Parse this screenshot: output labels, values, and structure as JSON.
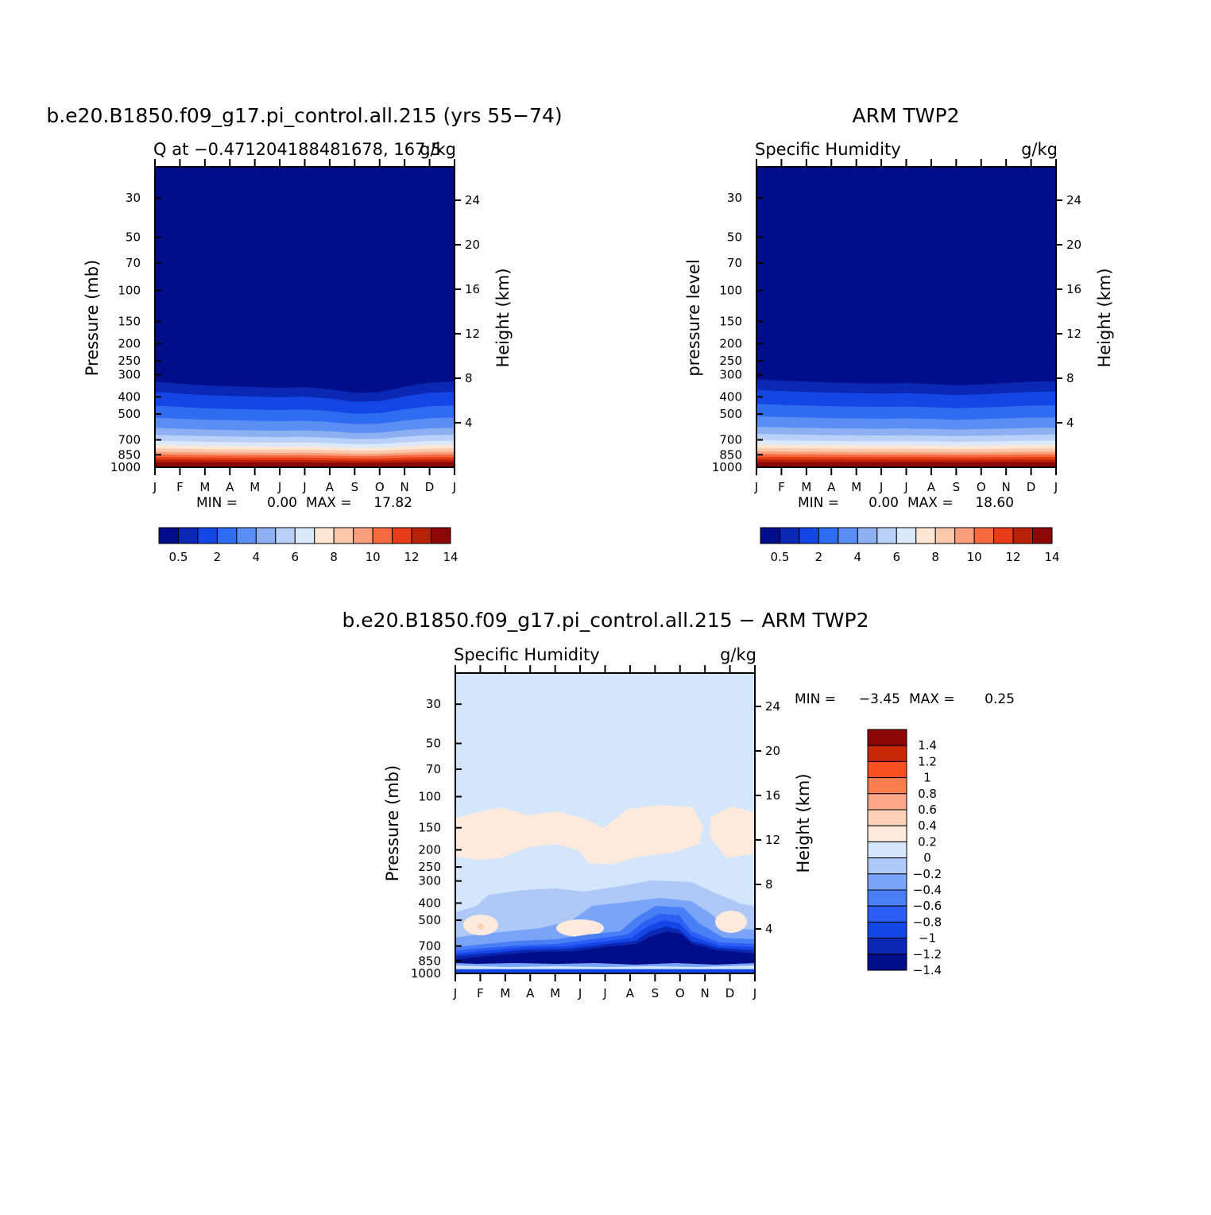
{
  "months": [
    "J",
    "F",
    "M",
    "A",
    "M",
    "J",
    "J",
    "A",
    "S",
    "O",
    "N",
    "D",
    "J"
  ],
  "pressure_ticks": [
    30,
    50,
    70,
    100,
    150,
    200,
    250,
    300,
    400,
    500,
    700,
    850,
    1000
  ],
  "height_ticks": [
    24,
    20,
    16,
    12,
    8,
    4
  ],
  "full_colors": [
    "#000e8a",
    "#0a28b4",
    "#1446e6",
    "#2e6cf2",
    "#5a8ef2",
    "#8cb0f2",
    "#b9d0f8",
    "#dbe9fb",
    "#fee6d4",
    "#fcc8ac",
    "#fa9e7c",
    "#f66a40",
    "#e83c16",
    "#b82208",
    "#8c0808"
  ],
  "full_labels": [
    "0.5",
    "2",
    "4",
    "6",
    "8",
    "10",
    "12",
    "14"
  ],
  "diff_colors": [
    "#000e8a",
    "#0a28b4",
    "#1446e6",
    "#2a5ef4",
    "#4a7ef6",
    "#7aa4f8",
    "#aec8f8",
    "#d4e6fb",
    "#feeadc",
    "#fdd0b8",
    "#fca888",
    "#fa7e4e",
    "#f65020",
    "#c82808",
    "#8c0808"
  ],
  "diff_labels": [
    "1.4",
    "1.2",
    "1",
    "0.8",
    "0.6",
    "0.4",
    "0.2",
    "0",
    "−0.2",
    "−0.4",
    "−0.6",
    "−0.8",
    "−1",
    "−1.2",
    "−1.4"
  ],
  "panels": {
    "model": {
      "title": "b.e20.B1850.f09_g17.pi_control.all.215 (yrs 55−74)",
      "left_label": "Q at −0.471204188481678, 167.5",
      "units": "g/kg",
      "ylabel": "Pressure (mb)",
      "y2label": "Height (km)",
      "min_text": "MIN =",
      "min_value": "0.00",
      "max_text": "MAX =",
      "max_value": "17.82"
    },
    "obs": {
      "title": "ARM TWP2",
      "left_label": "Specific Humidity",
      "units": "g/kg",
      "ylabel": "pressure level",
      "y2label": "Height (km)",
      "min_text": "MIN =",
      "min_value": "0.00",
      "max_text": "MAX =",
      "max_value": "18.60"
    },
    "diff": {
      "title": "b.e20.B1850.f09_g17.pi_control.all.215 − ARM TWP2",
      "left_label": "Specific Humidity",
      "units": "g/kg",
      "ylabel": "Pressure (mb)",
      "y2label": "Height (km)",
      "min_text": "MIN =",
      "min_value": "−3.45",
      "max_text": "MAX =",
      "max_value": "0.25"
    }
  },
  "chart_data": [
    {
      "type": "heatmap",
      "title": "b.e20.B1850.f09_g17.pi_control.all.215 (yrs 55−74)",
      "variable": "Q at −0.471204188481678, 167.5",
      "units": "g/kg",
      "x": [
        "J",
        "F",
        "M",
        "A",
        "M",
        "J",
        "J",
        "A",
        "S",
        "O",
        "N",
        "D",
        "J"
      ],
      "ylabel": "Pressure (mb)",
      "y2label": "Height (km)",
      "ylim": [
        1000,
        20
      ],
      "y_scale": "log",
      "y2lim": [
        0,
        27
      ],
      "contour_levels": [
        0.5,
        1,
        2,
        3,
        4,
        5,
        6,
        7,
        8,
        9,
        10,
        11,
        12,
        13,
        14
      ],
      "min": 0.0,
      "max": 17.82,
      "moisture_top_pressure_mb": [
        328,
        336,
        344,
        348,
        352,
        355,
        352,
        362,
        380,
        376,
        350,
        332,
        328
      ]
    },
    {
      "type": "heatmap",
      "title": "ARM TWP2",
      "variable": "Specific Humidity",
      "units": "g/kg",
      "x": [
        "J",
        "F",
        "M",
        "A",
        "M",
        "J",
        "J",
        "A",
        "S",
        "O",
        "N",
        "D",
        "J"
      ],
      "ylabel": "pressure level",
      "y2label": "Height (km)",
      "ylim": [
        1000,
        20
      ],
      "y_scale": "log",
      "y2lim": [
        0,
        27
      ],
      "contour_levels": [
        0.5,
        1,
        2,
        3,
        4,
        5,
        6,
        7,
        8,
        9,
        10,
        11,
        12,
        13,
        14
      ],
      "min": 0.0,
      "max": 18.6,
      "moisture_top_pressure_mb": [
        318,
        324,
        328,
        332,
        334,
        336,
        334,
        338,
        344,
        340,
        334,
        328,
        326
      ]
    },
    {
      "type": "heatmap",
      "title": "b.e20.B1850.f09_g17.pi_control.all.215 − ARM TWP2",
      "variable": "Specific Humidity",
      "units": "g/kg",
      "x": [
        "J",
        "F",
        "M",
        "A",
        "M",
        "J",
        "J",
        "A",
        "S",
        "O",
        "N",
        "D",
        "J"
      ],
      "ylabel": "Pressure (mb)",
      "y2label": "Height (km)",
      "ylim": [
        1000,
        20
      ],
      "y_scale": "log",
      "y2lim": [
        0,
        27
      ],
      "contour_levels": [
        -1.4,
        -1.2,
        -1,
        -0.8,
        -0.6,
        -0.4,
        -0.2,
        0,
        0.2,
        0.4,
        0.6,
        0.8,
        1,
        1.2,
        1.4
      ],
      "min": -3.45,
      "max": 0.25,
      "background_value_range": [
        -0.2,
        0
      ],
      "features": [
        {
          "description": "positive band",
          "value_range": [
            0,
            0.2
          ],
          "pressure_mb": [
            150,
            240
          ]
        },
        {
          "description": "negative band",
          "value_range": [
            -0.4,
            -0.2
          ],
          "pressure_mb": [
            380,
            600
          ]
        },
        {
          "description": "strong negative near surface",
          "value_range": [
            -3.45,
            -1.4
          ],
          "pressure_mb": [
            700,
            950
          ]
        }
      ]
    }
  ]
}
